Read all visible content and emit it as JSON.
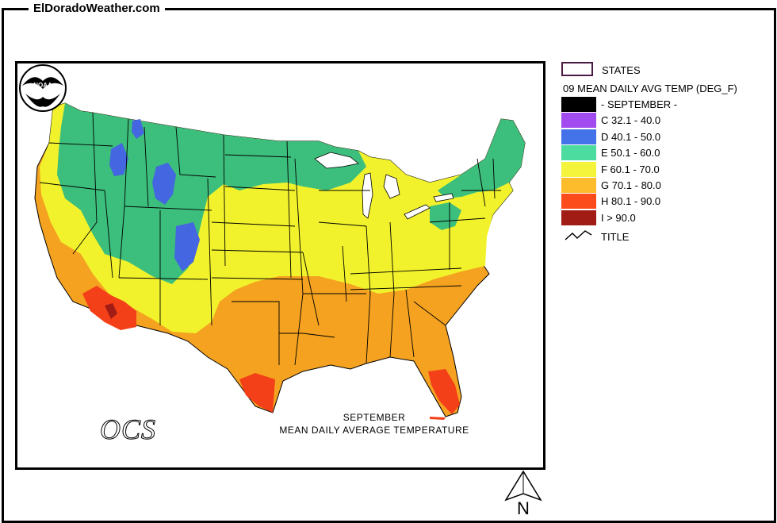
{
  "site": {
    "label": "ElDoradoWeather.com"
  },
  "legend": {
    "states_label": "STATES",
    "title": "09 MEAN DAILY AVG TEMP (DEG_F)",
    "title_line_label": "TITLE",
    "rows": [
      {
        "code": "",
        "label": "- SEPTEMBER -",
        "color": "#000000"
      },
      {
        "code": "C",
        "label": "C 32.1 - 40.0",
        "color": "#a24cf0"
      },
      {
        "code": "D",
        "label": "D 40.1 - 50.0",
        "color": "#4472e8"
      },
      {
        "code": "E",
        "label": "E 50.1 - 60.0",
        "color": "#4cdca0"
      },
      {
        "code": "F",
        "label": "F 60.1 - 70.0",
        "color": "#f4f43c"
      },
      {
        "code": "G",
        "label": "G 70.1 - 80.0",
        "color": "#fcbc2c"
      },
      {
        "code": "H",
        "label": "H 80.1 - 90.0",
        "color": "#fc4c1c"
      },
      {
        "code": "I",
        "label": "I > 90.0",
        "color": "#a01c14"
      }
    ]
  },
  "map": {
    "caption_line1": "SEPTEMBER",
    "caption_line2": "MEAN DAILY AVERAGE TEMPERATURE",
    "logo_text": "NOAA",
    "ocs_text": "OCS",
    "north_label": "N",
    "zone_colors": {
      "D": "#4466e0",
      "E": "#3cbe7c",
      "F": "#f2f22c",
      "G": "#f4a220",
      "H": "#f44018",
      "I": "#a01c14"
    }
  }
}
